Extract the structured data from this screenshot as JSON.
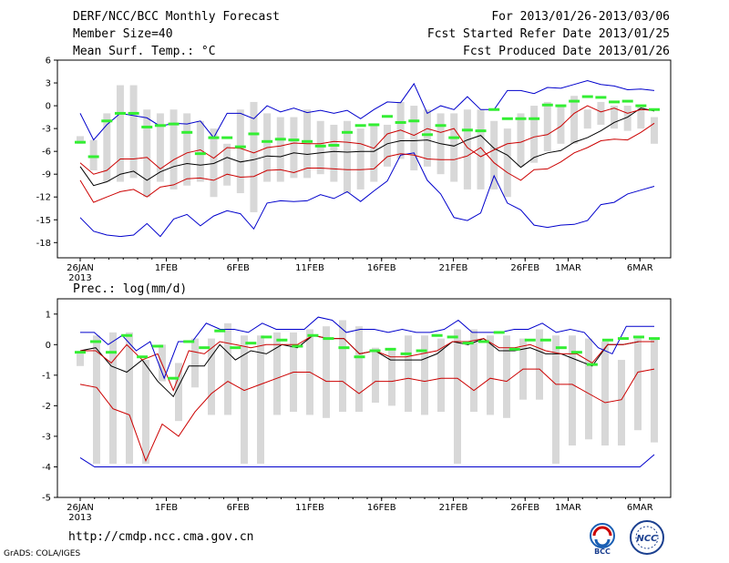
{
  "header": {
    "left": [
      "DERF/NCC/BCC Monthly Forecast",
      "Member Size=40",
      "Mean Surf. Temp.: °C"
    ],
    "right": [
      "For 2013/01/26-2013/03/06",
      "Fcst Started Refer Date 2013/01/25",
      "Fcst Produced Date 2013/01/26"
    ]
  },
  "precip_label": "Prec.: log(mm/d)",
  "footer": {
    "url": "http://cmdp.ncc.cma.gov.cn",
    "credit": "GrADS: COLA/IGES"
  },
  "logos": {
    "bcc": "BCC",
    "ncc": "NCC"
  },
  "colors": {
    "envelope_max_min": "#0000cc",
    "percentile_band": "#cc0000",
    "ensemble_mean": "#000000",
    "member_mean_marker": "#33ee33",
    "box_fill": "#d8d8d8"
  },
  "chart_data": [
    {
      "type": "box-line",
      "title": "Mean Surf. Temp.: °C",
      "xlabel": "",
      "ylabel": "°C",
      "ylim": [
        -20,
        6
      ],
      "yticks": [
        6,
        3,
        0,
        -3,
        -6,
        -9,
        -12,
        -15,
        -18
      ],
      "day_count": 40,
      "x_ticks": [
        {
          "day": 0,
          "label": "26JAN",
          "sub": "2013"
        },
        {
          "day": 6,
          "label": "1FEB"
        },
        {
          "day": 11,
          "label": "6FEB"
        },
        {
          "day": 16,
          "label": "11FEB"
        },
        {
          "day": 21,
          "label": "16FEB"
        },
        {
          "day": 26,
          "label": "21FEB"
        },
        {
          "day": 31,
          "label": "26FEB"
        },
        {
          "day": 34,
          "label": "1MAR"
        },
        {
          "day": 39,
          "label": "6MAR"
        }
      ],
      "series": [
        {
          "name": "max",
          "color": "#0000cc",
          "values": [
            -1,
            -4.5,
            -2.5,
            -1,
            -1.3,
            -1.6,
            -2.7,
            -2.3,
            -2.4,
            -2,
            -4.2,
            -1,
            -1,
            -1.7,
            0,
            -0.8,
            -0.3,
            -0.9,
            -0.6,
            -1,
            -0.6,
            -1.7,
            -0.5,
            0.5,
            0.4,
            2.9,
            -1,
            0,
            -0.5,
            1.2,
            -0.5,
            -0.5,
            2,
            2,
            1.6,
            2.4,
            2.3,
            2.8,
            3.3,
            2.8,
            2.6,
            2.1,
            2.2,
            2
          ]
        },
        {
          "name": "p_upper",
          "color": "#cc0000",
          "values": [
            -7.5,
            -9,
            -8.5,
            -7,
            -7,
            -6.8,
            -8.3,
            -7.1,
            -6.2,
            -5.8,
            -6.9,
            -5.5,
            -5.6,
            -6.2,
            -5.5,
            -5.3,
            -4.9,
            -5,
            -5,
            -4.7,
            -4.8,
            -5,
            -5.6,
            -3.7,
            -3.2,
            -3.9,
            -3,
            -3.5,
            -3,
            -5.5,
            -6.7,
            -5.8,
            -5,
            -4.8,
            -4.1,
            -3.8,
            -2.7,
            -1,
            0,
            -0.8,
            -0.3,
            -1,
            -0.5,
            -0.6
          ]
        },
        {
          "name": "mean",
          "color": "#000000",
          "values": [
            -8,
            -10.5,
            -10,
            -9,
            -8.6,
            -9.8,
            -8.7,
            -8,
            -7.6,
            -7.8,
            -7.6,
            -6.8,
            -7.4,
            -7.1,
            -6.6,
            -6.7,
            -6.2,
            -6.4,
            -6.2,
            -6,
            -6.1,
            -6,
            -6,
            -5,
            -4.6,
            -4.6,
            -4.5,
            -5,
            -5.3,
            -4.5,
            -3.9,
            -5.6,
            -6.5,
            -8.1,
            -6.8,
            -6.2,
            -5.9,
            -4.8,
            -4.2,
            -3.3,
            -2.2,
            -1.5,
            -0.3,
            -0.7
          ]
        },
        {
          "name": "p_lower",
          "color": "#cc0000",
          "values": [
            -9.8,
            -12.7,
            -12,
            -11.3,
            -11,
            -12,
            -10.7,
            -10.4,
            -9.6,
            -9.5,
            -9.8,
            -9,
            -9.4,
            -9.3,
            -8.5,
            -8.4,
            -8.8,
            -8.2,
            -8.2,
            -8.3,
            -8.4,
            -8.4,
            -8.3,
            -6.7,
            -6.3,
            -6.5,
            -7,
            -7.1,
            -7.1,
            -6.6,
            -5.5,
            -7.5,
            -8.8,
            -9.8,
            -8.4,
            -8.3,
            -7.4,
            -6.2,
            -5.5,
            -4.6,
            -4.4,
            -4.5,
            -3.5,
            -2.3
          ]
        },
        {
          "name": "min",
          "color": "#0000cc",
          "values": [
            -14.7,
            -16.5,
            -17,
            -17.2,
            -17,
            -15.5,
            -17.2,
            -14.9,
            -14.3,
            -15.8,
            -14.5,
            -13.8,
            -14.2,
            -16.2,
            -12.8,
            -12.5,
            -12.6,
            -12.5,
            -11.7,
            -12.2,
            -11.3,
            -12.6,
            -11.2,
            -9.9,
            -6.5,
            -6.2,
            -9.8,
            -11.6,
            -14.7,
            -15.1,
            -14.1,
            -9.2,
            -12.8,
            -13.7,
            -15.7,
            -16,
            -15.7,
            -15.6,
            -15.1,
            -13,
            -12.7,
            -11.6,
            -11.1,
            -10.6
          ]
        },
        {
          "name": "box_upper",
          "color": "#d8d8d8",
          "values": [
            -4,
            -4.5,
            -1,
            2.7,
            2.7,
            -0.5,
            -1,
            -0.5,
            -1,
            -2,
            -3,
            -5,
            -0.5,
            0.5,
            -1,
            -1.5,
            -1.5,
            -0.5,
            -2,
            -2.5,
            -2,
            -3,
            -2.5,
            -2.5,
            0.5,
            0,
            -0.5,
            -1,
            -1,
            -0.5,
            -0.5,
            -2,
            -3,
            -1,
            0,
            0.5,
            0,
            1.3,
            -0.5,
            0.5,
            0,
            0,
            0,
            -1.5
          ]
        },
        {
          "name": "box_lower",
          "color": "#d8d8d8",
          "values": [
            -5,
            -8.5,
            -10,
            -10,
            -9.5,
            -12,
            -10,
            -11,
            -10.5,
            -10,
            -12,
            -10.5,
            -11.5,
            -14,
            -10,
            -10,
            -9.5,
            -9.5,
            -9,
            -10,
            -11.5,
            -11,
            -10,
            -8,
            -7,
            -8.5,
            -8,
            -9,
            -10,
            -11,
            -11,
            -11,
            -12,
            -8,
            -7.5,
            -6,
            -5,
            -5,
            -3,
            -2.5,
            -3,
            -3.3,
            -3,
            -5
          ]
        },
        {
          "name": "member_mean",
          "color": "#33ee33",
          "values": [
            -4.8,
            -6.7,
            -2,
            -1,
            -1,
            -2.8,
            -2.6,
            -2.4,
            -3.5,
            -6.3,
            -4.2,
            -4.2,
            -5.4,
            -3.7,
            -4.7,
            -4.4,
            -4.5,
            -4.7,
            -5.3,
            -5.2,
            -3.5,
            -2.6,
            -2.5,
            -1.4,
            -2.2,
            -2,
            -3.8,
            -2.6,
            -4.2,
            -3.2,
            -3.3,
            -0.5,
            -1.7,
            -1.7,
            -1.7,
            0.1,
            0,
            0.6,
            1.2,
            1.1,
            0.5,
            0.6,
            0,
            -0.5
          ]
        }
      ]
    },
    {
      "type": "box-line",
      "title": "Prec.: log(mm/d)",
      "xlabel": "",
      "ylabel": "log(mm/d)",
      "ylim": [
        -5,
        1.5
      ],
      "yticks": [
        1,
        0,
        -1,
        -2,
        -3,
        -4,
        -5
      ],
      "day_count": 40,
      "x_ticks": [
        {
          "day": 0,
          "label": "26JAN",
          "sub": "2013"
        },
        {
          "day": 6,
          "label": "1FEB"
        },
        {
          "day": 11,
          "label": "6FEB"
        },
        {
          "day": 16,
          "label": "11FEB"
        },
        {
          "day": 21,
          "label": "16FEB"
        },
        {
          "day": 26,
          "label": "21FEB"
        },
        {
          "day": 31,
          "label": "26FEB"
        },
        {
          "day": 34,
          "label": "1MAR"
        },
        {
          "day": 39,
          "label": "6MAR"
        }
      ],
      "series": [
        {
          "name": "max",
          "color": "#0000cc",
          "values": [
            0.4,
            0.4,
            0,
            0.3,
            -0.2,
            0.1,
            -1.1,
            0.1,
            0.1,
            0.7,
            0.5,
            0.5,
            0.4,
            0.7,
            0.5,
            0.5,
            0.5,
            0.9,
            0.8,
            0.4,
            0.5,
            0.5,
            0.4,
            0.5,
            0.4,
            0.4,
            0.5,
            0.8,
            0.4,
            0.4,
            0.4,
            0.5,
            0.5,
            0.7,
            0.4,
            0.5,
            0.4,
            -0.1,
            -0.3,
            0.6,
            0.6,
            0.6
          ]
        },
        {
          "name": "p_upper",
          "color": "#cc0000",
          "values": [
            -0.2,
            -0.2,
            -0.6,
            0,
            -0.5,
            -0.3,
            -1.5,
            -0.2,
            -0.3,
            0.1,
            0,
            -0.1,
            0,
            0,
            0,
            0.3,
            0.2,
            0.2,
            -0.3,
            -0.2,
            -0.4,
            -0.4,
            -0.3,
            -0.2,
            0.1,
            0.1,
            0.2,
            -0.1,
            -0.1,
            0,
            -0.2,
            -0.3,
            -0.3,
            -0.6,
            0,
            0,
            0.1,
            0.1
          ]
        },
        {
          "name": "mean",
          "color": "#000000",
          "values": [
            -0.2,
            -0.1,
            -0.7,
            -0.9,
            -0.5,
            -1.2,
            -1.7,
            -0.7,
            -0.7,
            0,
            -0.5,
            -0.2,
            -0.3,
            0,
            -0.1,
            0.3,
            0.2,
            0.2,
            -0.3,
            -0.2,
            -0.5,
            -0.5,
            -0.5,
            -0.3,
            0.1,
            0,
            0.2,
            -0.2,
            -0.2,
            -0.1,
            -0.3,
            -0.3,
            -0.5,
            -0.7,
            0,
            0,
            0.1,
            0.1
          ]
        },
        {
          "name": "p_lower",
          "color": "#cc0000",
          "values": [
            -1.3,
            -1.4,
            -2.1,
            -2.3,
            -3.8,
            -2.6,
            -3,
            -2.2,
            -1.6,
            -1.2,
            -1.5,
            -1.3,
            -1.1,
            -0.9,
            -0.9,
            -1.2,
            -1.2,
            -1.6,
            -1.2,
            -1.2,
            -1.1,
            -1.2,
            -1.1,
            -1.1,
            -1.5,
            -1.1,
            -1.2,
            -0.8,
            -0.8,
            -1.3,
            -1.3,
            -1.6,
            -1.9,
            -1.8,
            -0.9,
            -0.8
          ]
        },
        {
          "name": "min",
          "color": "#0000cc",
          "values": [
            -3.7,
            -4,
            -4,
            -4,
            -4,
            -4,
            -4,
            -4,
            -4,
            -4,
            -4,
            -4,
            -4,
            -4,
            -4,
            -4,
            -4,
            -4,
            -4,
            -4,
            -4,
            -4,
            -4,
            -4,
            -4,
            -4,
            -4,
            -4,
            -4,
            -4,
            -4,
            -4,
            -4,
            -4,
            -4,
            -4,
            -4,
            -4,
            -4,
            -4,
            -3.6
          ]
        },
        {
          "name": "box_upper",
          "color": "#d8d8d8",
          "values": [
            -0.3,
            0.3,
            0.4,
            0.4,
            -0.5,
            0,
            -0.6,
            0.2,
            0.2,
            0.7,
            0.3,
            0.3,
            0.4,
            0.4,
            0.5,
            0.6,
            0.8,
            0.6,
            -0.1,
            -0.2,
            0.3,
            0.3,
            0.2,
            0.5,
            0.5,
            0.3,
            0.3,
            0.2,
            0.5,
            0.3,
            0.3,
            0.2,
            0.1,
            -0.5,
            0.2,
            0.2,
            0.3,
            0.4
          ]
        },
        {
          "name": "box_lower",
          "color": "#d8d8d8",
          "values": [
            -0.7,
            -3.9,
            -3.9,
            -3.9,
            -3.9,
            -1.2,
            -2.5,
            -1.4,
            -2.3,
            -2.3,
            -3.9,
            -3.9,
            -2.3,
            -2.2,
            -2.3,
            -2.4,
            -2.2,
            -2.2,
            -1.9,
            -2,
            -2.2,
            -2.3,
            -2.2,
            -3.9,
            -2.2,
            -2.3,
            -2.4,
            -1.8,
            -1.8,
            -3.9,
            -3.3,
            -3.1,
            -3.3,
            -3.3,
            -2.8,
            -3.2
          ]
        },
        {
          "name": "member_mean",
          "color": "#33ee33",
          "values": [
            -0.25,
            0.1,
            -0.25,
            0.3,
            -0.4,
            -0.05,
            -1.1,
            0.1,
            -0.1,
            0.45,
            -0.1,
            0.05,
            0.25,
            0.15,
            -0.05,
            0.3,
            0.2,
            -0.1,
            -0.4,
            -0.2,
            -0.15,
            -0.3,
            -0.2,
            0.3,
            0.25,
            0.05,
            0.1,
            0.4,
            -0.15,
            0.15,
            0.15,
            -0.1,
            -0.25,
            -0.65,
            0.15,
            0.2,
            0.25,
            0.2
          ]
        }
      ]
    }
  ]
}
